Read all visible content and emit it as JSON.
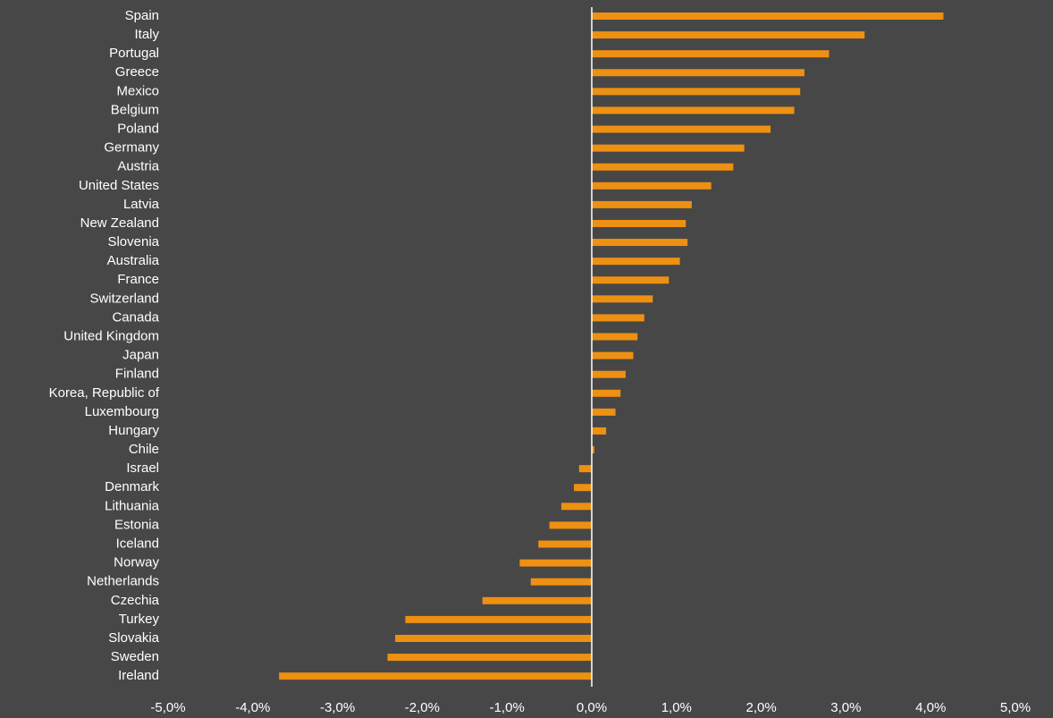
{
  "chart_data": {
    "type": "barh",
    "categories": [
      "Spain",
      "Italy",
      "Portugal",
      "Greece",
      "Mexico",
      "Belgium",
      "Poland",
      "Germany",
      "Austria",
      "United States",
      "Latvia",
      "New Zealand",
      "Slovenia",
      "Australia",
      "France",
      "Switzerland",
      "Canada",
      "United Kingdom",
      "Japan",
      "Finland",
      "Korea, Republic of",
      "Luxembourg",
      "Hungary",
      "Chile",
      "Israel",
      "Denmark",
      "Lithuania",
      "Estonia",
      "Iceland",
      "Norway",
      "Netherlands",
      "Czechia",
      "Turkey",
      "Slovakia",
      "Sweden",
      "Ireland"
    ],
    "values": [
      4.15,
      3.22,
      2.8,
      2.51,
      2.46,
      2.39,
      2.11,
      1.8,
      1.67,
      1.41,
      1.18,
      1.11,
      1.13,
      1.04,
      0.91,
      0.72,
      0.62,
      0.54,
      0.49,
      0.4,
      0.34,
      0.28,
      0.17,
      0.03,
      -0.15,
      -0.21,
      -0.36,
      -0.5,
      -0.63,
      -0.85,
      -0.72,
      -1.29,
      -2.2,
      -2.32,
      -2.41,
      -3.69
    ],
    "color": "#ee9011",
    "xlim": [
      -5,
      5
    ],
    "xticks": [
      {
        "value": -5,
        "label": "-5,0%"
      },
      {
        "value": -4,
        "label": "-4,0%"
      },
      {
        "value": -3,
        "label": "-3,0%"
      },
      {
        "value": -2,
        "label": "-2,0%"
      },
      {
        "value": -1,
        "label": "-1,0%"
      },
      {
        "value": 0,
        "label": "0,0%"
      },
      {
        "value": 1,
        "label": "1,0%"
      },
      {
        "value": 2,
        "label": "2,0%"
      },
      {
        "value": 3,
        "label": "3,0%"
      },
      {
        "value": 4,
        "label": "4,0%"
      },
      {
        "value": 5,
        "label": "5,0%"
      }
    ],
    "grid": false
  }
}
